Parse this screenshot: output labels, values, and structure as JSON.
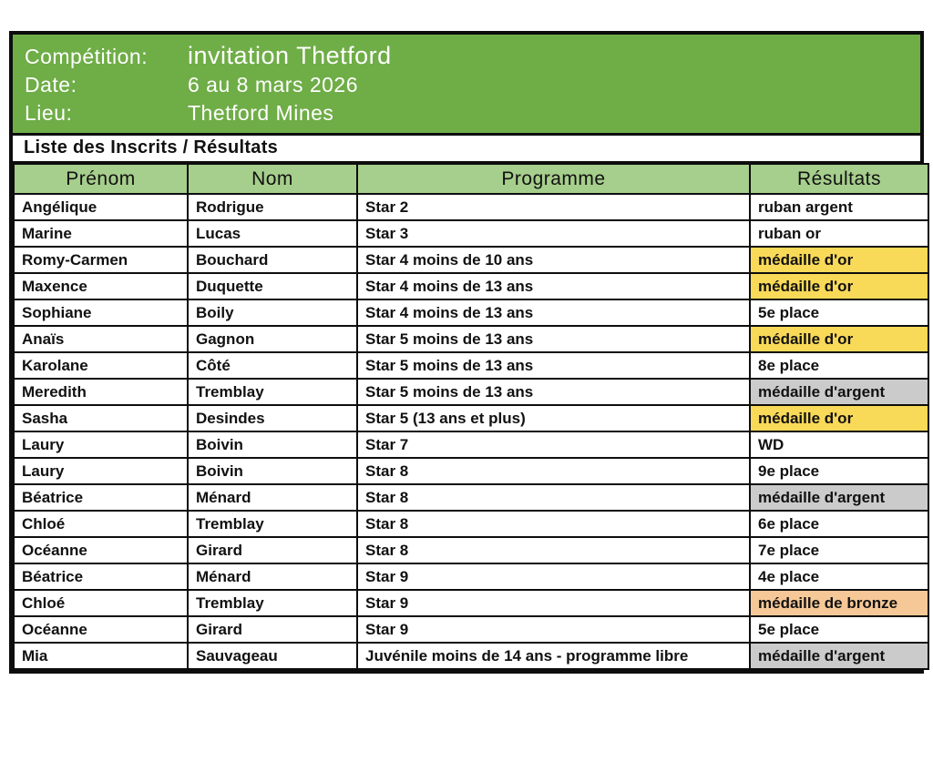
{
  "meta": {
    "competition_label": "Compétition:",
    "competition_value": "invitation Thetford",
    "date_label": "Date:",
    "date_value": "6 au 8 mars 2026",
    "lieu_label": "Lieu:",
    "lieu_value": "Thetford Mines"
  },
  "section_title": "Liste des Inscrits / Résultats",
  "table": {
    "headers": [
      "Prénom",
      "Nom",
      "Programme",
      "Résultats"
    ],
    "rows": [
      {
        "prenom": "Angélique",
        "nom": "Rodrigue",
        "programme": "Star 2",
        "resultat": "ruban argent",
        "medal": "none"
      },
      {
        "prenom": "Marine",
        "nom": "Lucas",
        "programme": "Star 3",
        "resultat": "ruban or",
        "medal": "none"
      },
      {
        "prenom": "Romy-Carmen",
        "nom": "Bouchard",
        "programme": "Star 4 moins de 10 ans",
        "resultat": "médaille d'or",
        "medal": "gold"
      },
      {
        "prenom": "Maxence",
        "nom": "Duquette",
        "programme": "Star 4 moins de 13 ans",
        "resultat": "médaille d'or",
        "medal": "gold"
      },
      {
        "prenom": "Sophiane",
        "nom": "Boily",
        "programme": "Star 4 moins de 13 ans",
        "resultat": "5e place",
        "medal": "none"
      },
      {
        "prenom": "Anaïs",
        "nom": "Gagnon",
        "programme": "Star 5 moins de 13 ans",
        "resultat": "médaille d'or",
        "medal": "gold"
      },
      {
        "prenom": "Karolane",
        "nom": "Côté",
        "programme": "Star 5 moins de 13 ans",
        "resultat": "8e place",
        "medal": "none"
      },
      {
        "prenom": "Meredith",
        "nom": "Tremblay",
        "programme": "Star 5 moins de 13 ans",
        "resultat": "médaille d'argent",
        "medal": "silver"
      },
      {
        "prenom": "Sasha",
        "nom": "Desindes",
        "programme": "Star 5 (13 ans et plus)",
        "resultat": "médaille d'or",
        "medal": "gold"
      },
      {
        "prenom": "Laury",
        "nom": "Boivin",
        "programme": "Star 7",
        "resultat": "WD",
        "medal": "none"
      },
      {
        "prenom": "Laury",
        "nom": "Boivin",
        "programme": "Star 8",
        "resultat": "9e place",
        "medal": "none"
      },
      {
        "prenom": "Béatrice",
        "nom": "Ménard",
        "programme": "Star 8",
        "resultat": "médaille d'argent",
        "medal": "silver"
      },
      {
        "prenom": "Chloé",
        "nom": "Tremblay",
        "programme": "Star 8",
        "resultat": "6e place",
        "medal": "none"
      },
      {
        "prenom": "Océanne",
        "nom": "Girard",
        "programme": "Star 8",
        "resultat": "7e place",
        "medal": "none"
      },
      {
        "prenom": "Béatrice",
        "nom": "Ménard",
        "programme": "Star 9",
        "resultat": "4e place",
        "medal": "none"
      },
      {
        "prenom": "Chloé",
        "nom": "Tremblay",
        "programme": "Star 9",
        "resultat": "médaille de bronze",
        "medal": "bronze"
      },
      {
        "prenom": "Océanne",
        "nom": "Girard",
        "programme": "Star 9",
        "resultat": "5e place",
        "medal": "none"
      },
      {
        "prenom": "Mia",
        "nom": "Sauvageau",
        "programme": "Juvénile moins de 14 ans - programme libre",
        "resultat": "médaille d'argent",
        "medal": "silver"
      }
    ]
  },
  "colors": {
    "header_green": "#6FAD47",
    "column_header_green": "#A6CE8C",
    "gold": "#F9D958",
    "silver": "#CBCBCB",
    "bronze": "#F6C897"
  }
}
